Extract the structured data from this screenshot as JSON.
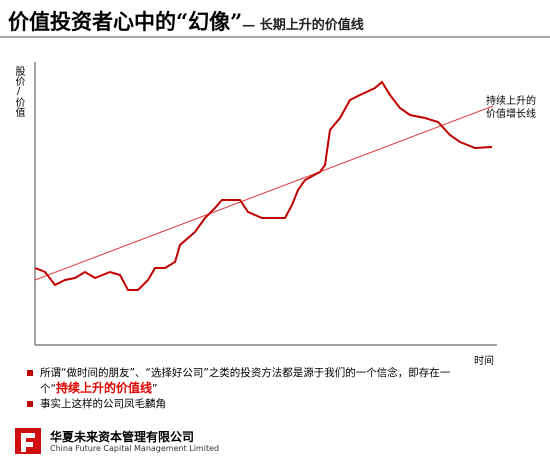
{
  "header": {
    "title": "价值投资者心中的“幻像”",
    "subtitle": "— 长期上升的价值线"
  },
  "chart": {
    "y_label": "股价/价值",
    "x_label": "时间",
    "annotation": [
      "持续上升的",
      "价值增长线"
    ]
  },
  "bullets": [
    {
      "parts": [
        "所谓“做时间的朋友”、“选择好公司”之类的投资方法都是源于我们的一个信念，即存在一个“",
        "持续上升的价值线",
        "”"
      ]
    },
    {
      "parts": [
        "事实上这样的公司凤毛麟角"
      ]
    }
  ],
  "footer": {
    "company": "华夏未来资本管理有限公司",
    "company_en": "China Future Capital Management Limited"
  }
}
